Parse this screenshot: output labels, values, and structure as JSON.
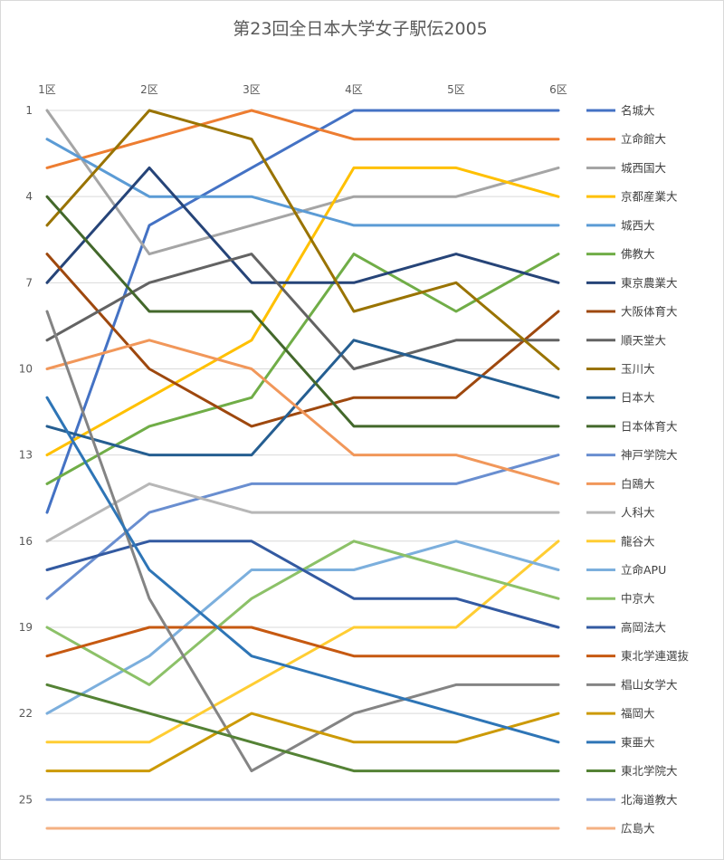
{
  "chart_data": {
    "type": "line",
    "title": "第23回全日本大学女子駅伝2005",
    "xlabel": "",
    "ylabel": "",
    "categories": [
      "1区",
      "2区",
      "3区",
      "4区",
      "5区",
      "6区"
    ],
    "y_axis": {
      "reversed": true,
      "ylim": [
        1,
        26
      ],
      "tick_labels": [
        "1",
        "4",
        "7",
        "10",
        "13",
        "16",
        "19",
        "22",
        "25"
      ]
    },
    "grid": true,
    "legend_position": "right",
    "series": [
      {
        "name": "名城大",
        "color": "#4472C4",
        "values": [
          15,
          5,
          3,
          1,
          1,
          1
        ]
      },
      {
        "name": "立命館大",
        "color": "#ED7D31",
        "values": [
          3,
          2,
          1,
          2,
          2,
          2
        ]
      },
      {
        "name": "城西国大",
        "color": "#A5A5A5",
        "values": [
          1,
          6,
          5,
          4,
          4,
          3
        ]
      },
      {
        "name": "京都産業大",
        "color": "#FFC000",
        "values": [
          13,
          11,
          9,
          3,
          3,
          4
        ]
      },
      {
        "name": "城西大",
        "color": "#5B9BD5",
        "values": [
          2,
          4,
          4,
          5,
          5,
          5
        ]
      },
      {
        "name": "佛教大",
        "color": "#70AD47",
        "values": [
          14,
          12,
          11,
          6,
          8,
          6
        ]
      },
      {
        "name": "東京農業大",
        "color": "#264478",
        "values": [
          7,
          3,
          7,
          7,
          6,
          7
        ]
      },
      {
        "name": "大阪体育大",
        "color": "#9E480E",
        "values": [
          6,
          10,
          12,
          11,
          11,
          8
        ]
      },
      {
        "name": "順天堂大",
        "color": "#636363",
        "values": [
          9,
          7,
          6,
          10,
          9,
          9
        ]
      },
      {
        "name": "玉川大",
        "color": "#997300",
        "values": [
          5,
          1,
          2,
          8,
          7,
          10
        ]
      },
      {
        "name": "日本大",
        "color": "#255E91",
        "values": [
          12,
          13,
          13,
          9,
          10,
          11
        ]
      },
      {
        "name": "日本体育大",
        "color": "#43682B",
        "values": [
          4,
          8,
          8,
          12,
          12,
          12
        ]
      },
      {
        "name": "神戸学院大",
        "color": "#698ED0",
        "values": [
          18,
          15,
          14,
          14,
          14,
          13
        ]
      },
      {
        "name": "白鴎大",
        "color": "#F1975A",
        "values": [
          10,
          9,
          10,
          13,
          13,
          14
        ]
      },
      {
        "name": "人科大",
        "color": "#B7B7B7",
        "values": [
          16,
          14,
          15,
          15,
          15,
          15
        ]
      },
      {
        "name": "龍谷大",
        "color": "#FFCD33",
        "values": [
          23,
          23,
          21,
          19,
          19,
          16
        ]
      },
      {
        "name": "立命APU",
        "color": "#7CAFDD",
        "values": [
          22,
          20,
          17,
          17,
          16,
          17
        ]
      },
      {
        "name": "中京大",
        "color": "#8CC168",
        "values": [
          19,
          21,
          18,
          16,
          17,
          18
        ]
      },
      {
        "name": "高岡法大",
        "color": "#335AA1",
        "values": [
          17,
          16,
          16,
          18,
          18,
          19
        ]
      },
      {
        "name": "東北学連選抜",
        "color": "#C65911",
        "values": [
          20,
          19,
          19,
          20,
          20,
          20
        ]
      },
      {
        "name": "椙山女学大",
        "color": "#848484",
        "values": [
          8,
          18,
          24,
          22,
          21,
          21
        ]
      },
      {
        "name": "福岡大",
        "color": "#CC9A06",
        "values": [
          24,
          24,
          22,
          23,
          23,
          22
        ]
      },
      {
        "name": "東亜大",
        "color": "#2E75B6",
        "values": [
          11,
          17,
          20,
          21,
          22,
          23
        ]
      },
      {
        "name": "東北学院大",
        "color": "#548235",
        "values": [
          21,
          22,
          23,
          24,
          24,
          24
        ]
      },
      {
        "name": "北海道教大",
        "color": "#8EA9DB",
        "values": [
          25,
          25,
          25,
          25,
          25,
          25
        ]
      },
      {
        "name": "広島大",
        "color": "#F4B183",
        "values": [
          26,
          26,
          26,
          26,
          26,
          26
        ]
      }
    ]
  }
}
